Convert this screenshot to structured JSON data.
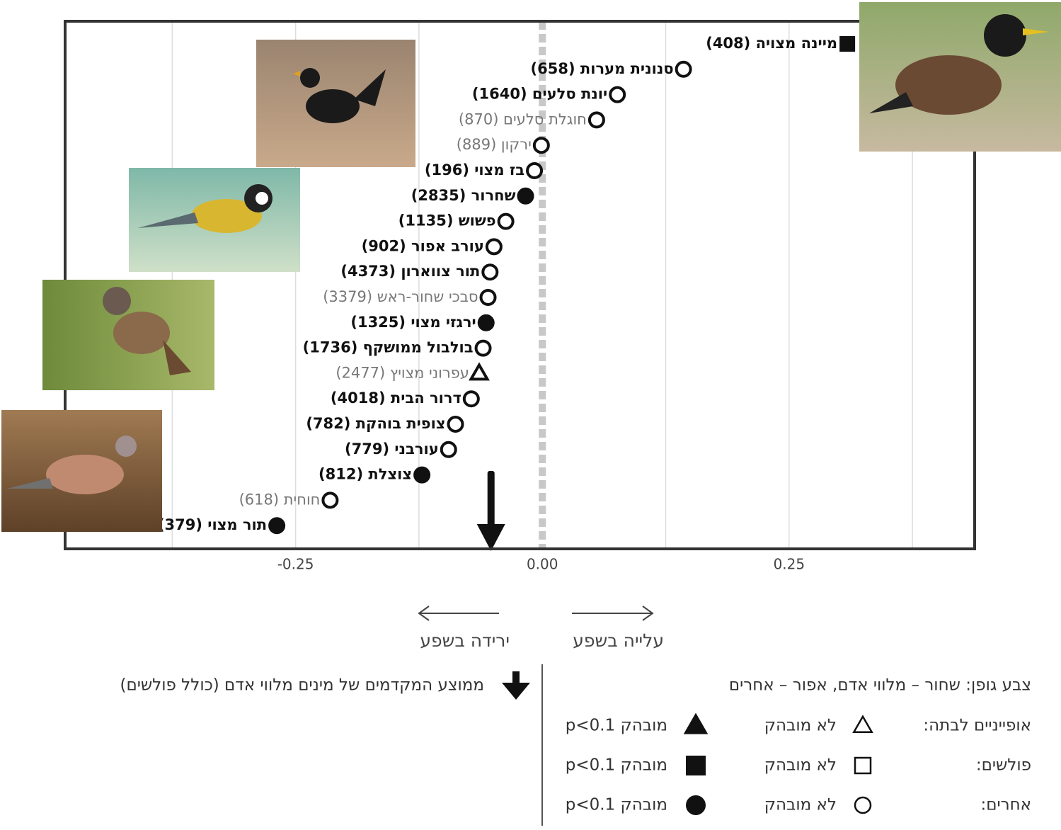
{
  "chart_data": {
    "type": "dot",
    "categories": [
      "מיינה מצויה (408)",
      "סנונית מערות (658)",
      "יונת סלעים (1640)",
      "חוגלת סלעים (870)",
      "ירקון (889)",
      "בז מצוי (196)",
      "שחרור (2835)",
      "פשוש (1135)",
      "עורב אפור (902)",
      "תור צווארון (4373)",
      "סבכי שחור-ראש (3379)",
      "ירגזי מצוי (1325)",
      "בולבול ממושקף (1736)",
      "עפרוני מצויץ (2477)",
      "דרור הבית (4018)",
      "צופית בוהקת (782)",
      "עורבני (779)",
      "צוצלת (812)",
      "חוחית (618)",
      "תור מצוי (379)"
    ],
    "values": [
      0.309,
      0.143,
      0.076,
      0.055,
      -0.001,
      -0.008,
      -0.017,
      -0.037,
      -0.049,
      -0.053,
      -0.055,
      -0.057,
      -0.06,
      -0.064,
      -0.072,
      -0.088,
      -0.095,
      -0.122,
      -0.215,
      -0.269
    ],
    "shapes": [
      "square",
      "circle",
      "circle",
      "circle",
      "circle",
      "circle",
      "circle",
      "circle",
      "circle",
      "circle",
      "circle",
      "circle",
      "circle",
      "triangle",
      "circle",
      "circle",
      "circle",
      "circle",
      "circle",
      "circle"
    ],
    "filled": [
      true,
      false,
      false,
      false,
      false,
      false,
      true,
      false,
      false,
      false,
      false,
      true,
      false,
      false,
      false,
      false,
      false,
      true,
      false,
      true
    ],
    "label_colors": [
      "#111111",
      "#111111",
      "#111111",
      "#777777",
      "#777777",
      "#111111",
      "#111111",
      "#111111",
      "#111111",
      "#111111",
      "#777777",
      "#111111",
      "#111111",
      "#777777",
      "#111111",
      "#111111",
      "#111111",
      "#111111",
      "#777777",
      "#111111"
    ],
    "mean": -0.052,
    "xlim": [
      -0.4835,
      0.438
    ],
    "xticks": [
      -0.25,
      {
        "value": 0,
        "label": "0.00"
      },
      0.25
    ],
    "xgrid": [
      -0.375,
      -0.125,
      0.125,
      0.375
    ],
    "direction_left": "ירידה בשפע",
    "direction_right": "עלייה בשפע",
    "legend": {
      "mean_label": "ממוצע המקדמים של מינים מלווי אדם (כולל פולשים)",
      "font_color_note": "צבע גופן: שחור – מלווי אדם, אפור – אחרים",
      "not_significant": "לא מובהק",
      "significant": "מובהק p<0.1",
      "rows": [
        {
          "name": "אופייניים לבתה:",
          "shape": "triangle"
        },
        {
          "name": "פולשים:",
          "shape": "square"
        },
        {
          "name": "אחרים:",
          "shape": "circle"
        }
      ]
    }
  }
}
